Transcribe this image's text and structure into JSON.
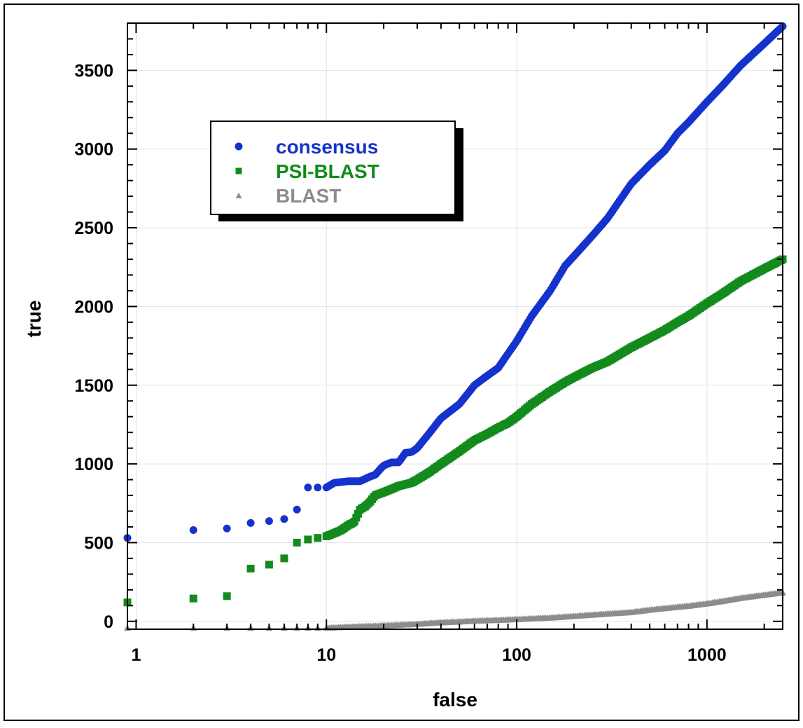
{
  "chart_data": {
    "type": "scatter",
    "title": "",
    "xlabel": "false",
    "ylabel": "true",
    "x_scale": "log",
    "xlim": [
      0.9,
      2500
    ],
    "ylim": [
      -50,
      3800
    ],
    "grid": true,
    "legend_placement": "top-left",
    "x_ticks": [
      {
        "value": 1,
        "label": "1"
      },
      {
        "value": 10,
        "label": "10"
      },
      {
        "value": 100,
        "label": "100"
      },
      {
        "value": 1000,
        "label": "1000"
      }
    ],
    "y_ticks": [
      {
        "value": 0,
        "label": "0"
      },
      {
        "value": 500,
        "label": "500"
      },
      {
        "value": 1000,
        "label": "1000"
      },
      {
        "value": 1500,
        "label": "1500"
      },
      {
        "value": 2000,
        "label": "2000"
      },
      {
        "value": 2500,
        "label": "2500"
      },
      {
        "value": 3000,
        "label": "3000"
      },
      {
        "value": 3500,
        "label": "3500"
      }
    ],
    "series": [
      {
        "name": "consensus",
        "color": "#1533cc",
        "marker": "circle",
        "points": [
          [
            0.9,
            530
          ],
          [
            2,
            580
          ],
          [
            3,
            590
          ],
          [
            4,
            625
          ],
          [
            5,
            637
          ],
          [
            6,
            650
          ],
          [
            7,
            710
          ],
          [
            8,
            850
          ],
          [
            9,
            850
          ],
          [
            10,
            850
          ],
          [
            11,
            880
          ],
          [
            12,
            885
          ],
          [
            13,
            890
          ],
          [
            14,
            890
          ],
          [
            15,
            890
          ],
          [
            16,
            905
          ],
          [
            17,
            920
          ],
          [
            18,
            930
          ],
          [
            20,
            990
          ],
          [
            22,
            1010
          ],
          [
            24,
            1010
          ],
          [
            26,
            1070
          ],
          [
            28,
            1075
          ],
          [
            30,
            1100
          ],
          [
            35,
            1200
          ],
          [
            40,
            1290
          ],
          [
            50,
            1380
          ],
          [
            60,
            1500
          ],
          [
            70,
            1560
          ],
          [
            80,
            1610
          ],
          [
            90,
            1700
          ],
          [
            100,
            1780
          ],
          [
            120,
            1940
          ],
          [
            150,
            2100
          ],
          [
            180,
            2260
          ],
          [
            200,
            2320
          ],
          [
            250,
            2450
          ],
          [
            300,
            2560
          ],
          [
            400,
            2780
          ],
          [
            500,
            2900
          ],
          [
            600,
            2990
          ],
          [
            700,
            3100
          ],
          [
            800,
            3170
          ],
          [
            1000,
            3300
          ],
          [
            1200,
            3400
          ],
          [
            1500,
            3530
          ],
          [
            2000,
            3670
          ],
          [
            2500,
            3780
          ]
        ]
      },
      {
        "name": "PSI-BLAST",
        "color": "#138a1c",
        "marker": "square",
        "points": [
          [
            0.9,
            120
          ],
          [
            2,
            145
          ],
          [
            3,
            160
          ],
          [
            4,
            335
          ],
          [
            5,
            360
          ],
          [
            6,
            400
          ],
          [
            7,
            500
          ],
          [
            8,
            520
          ],
          [
            9,
            530
          ],
          [
            10,
            540
          ],
          [
            11,
            560
          ],
          [
            12,
            580
          ],
          [
            13,
            610
          ],
          [
            14,
            630
          ],
          [
            15,
            710
          ],
          [
            16,
            730
          ],
          [
            17,
            760
          ],
          [
            18,
            800
          ],
          [
            20,
            820
          ],
          [
            22,
            840
          ],
          [
            24,
            860
          ],
          [
            26,
            870
          ],
          [
            28,
            880
          ],
          [
            30,
            900
          ],
          [
            35,
            950
          ],
          [
            40,
            1000
          ],
          [
            50,
            1080
          ],
          [
            60,
            1150
          ],
          [
            70,
            1190
          ],
          [
            80,
            1230
          ],
          [
            90,
            1260
          ],
          [
            100,
            1300
          ],
          [
            120,
            1380
          ],
          [
            150,
            1460
          ],
          [
            180,
            1520
          ],
          [
            200,
            1550
          ],
          [
            250,
            1610
          ],
          [
            300,
            1650
          ],
          [
            400,
            1740
          ],
          [
            500,
            1800
          ],
          [
            600,
            1850
          ],
          [
            700,
            1900
          ],
          [
            800,
            1940
          ],
          [
            1000,
            2020
          ],
          [
            1200,
            2080
          ],
          [
            1500,
            2160
          ],
          [
            2000,
            2240
          ],
          [
            2500,
            2300
          ]
        ]
      },
      {
        "name": "BLAST",
        "color": "#8c8c8c",
        "marker": "triangle",
        "points": [
          [
            0.9,
            -40
          ],
          [
            2,
            -40
          ],
          [
            3,
            -40
          ],
          [
            4,
            -40
          ],
          [
            5,
            -40
          ],
          [
            6,
            -40
          ],
          [
            7,
            -40
          ],
          [
            8,
            -40
          ],
          [
            9,
            -40
          ],
          [
            10,
            -40
          ],
          [
            12,
            -35
          ],
          [
            15,
            -30
          ],
          [
            20,
            -25
          ],
          [
            30,
            -15
          ],
          [
            40,
            -5
          ],
          [
            50,
            0
          ],
          [
            60,
            5
          ],
          [
            80,
            10
          ],
          [
            100,
            15
          ],
          [
            150,
            25
          ],
          [
            200,
            35
          ],
          [
            300,
            50
          ],
          [
            400,
            60
          ],
          [
            500,
            75
          ],
          [
            600,
            85
          ],
          [
            800,
            100
          ],
          [
            1000,
            115
          ],
          [
            1200,
            130
          ],
          [
            1500,
            150
          ],
          [
            2000,
            170
          ],
          [
            2500,
            185
          ]
        ]
      }
    ]
  }
}
